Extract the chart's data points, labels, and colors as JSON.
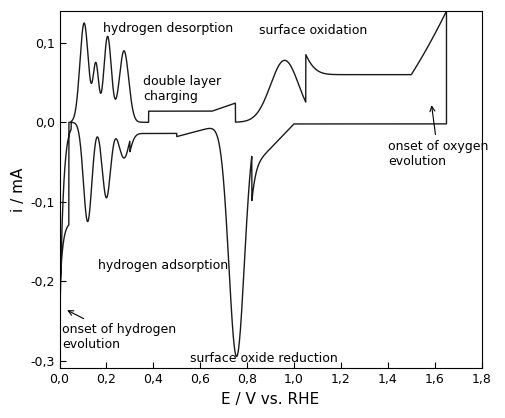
{
  "xlim": [
    0.0,
    1.8
  ],
  "ylim": [
    -0.31,
    0.14
  ],
  "xlabel": "E / V vs. RHE",
  "ylabel": "i / mA",
  "xticks": [
    0.0,
    0.2,
    0.4,
    0.6,
    0.8,
    1.0,
    1.2,
    1.4,
    1.6,
    1.8
  ],
  "xtick_labels": [
    "0,0",
    "0,2",
    "0,4",
    "0,6",
    "0,8",
    "1,0",
    "1,2",
    "1,4",
    "1,6",
    "1,8"
  ],
  "yticks": [
    -0.3,
    -0.2,
    -0.1,
    0.0,
    0.1
  ],
  "ytick_labels": [
    "-0,3",
    "-0,2",
    "-0,1",
    "0,0",
    "0,1"
  ],
  "line_color": "#1a1a1a",
  "background_color": "#ffffff"
}
